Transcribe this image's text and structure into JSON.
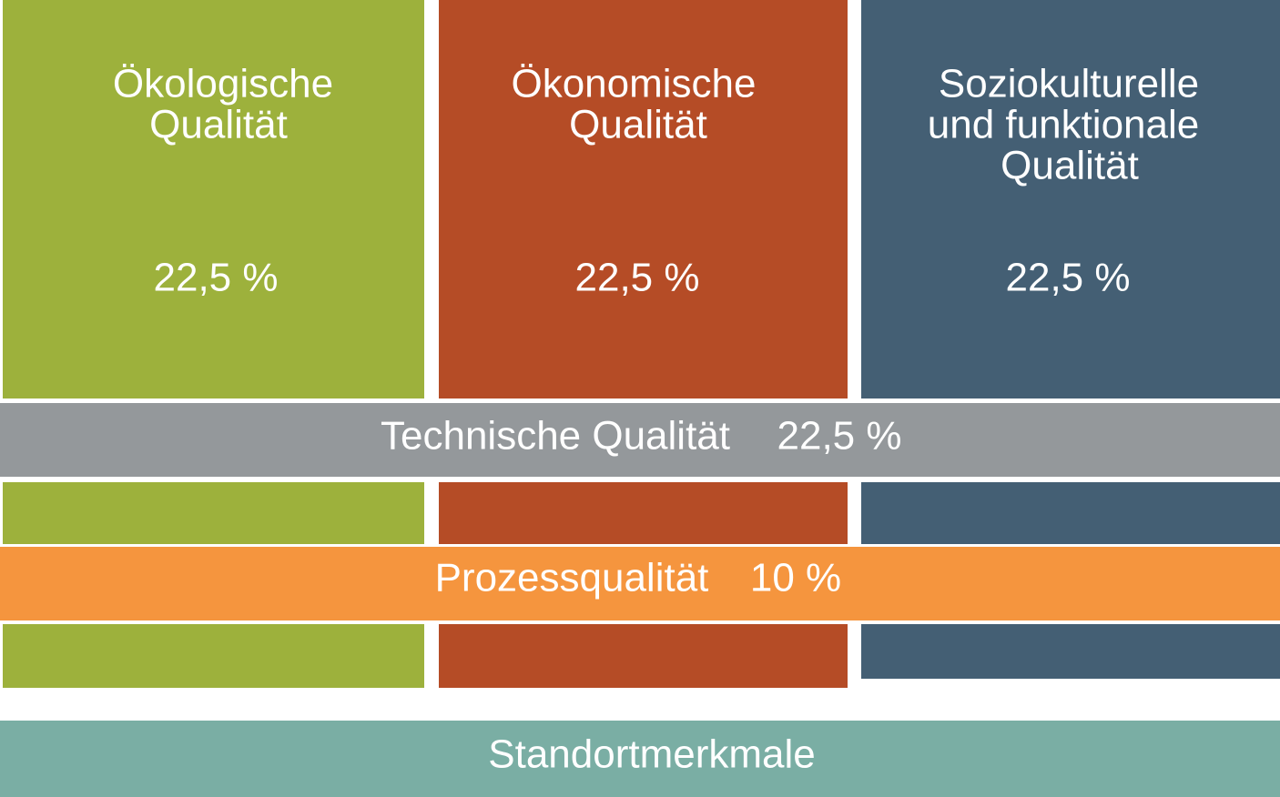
{
  "columns": [
    {
      "title": [
        "Ökologische",
        "Qualität"
      ],
      "share": "22,5 %"
    },
    {
      "title": [
        "Ökonomische",
        "Qualität"
      ],
      "share": "22,5 %"
    },
    {
      "title": [
        "Soziokulturelle",
        "und funktionale",
        "Qualität"
      ],
      "share": "22,5 %"
    }
  ],
  "technical": {
    "label": "Technische Qualität",
    "share": "22,5 %"
  },
  "process": {
    "label": "Prozessqualität",
    "share": "10 %"
  },
  "site": {
    "label": "Standortmerkmale"
  }
}
